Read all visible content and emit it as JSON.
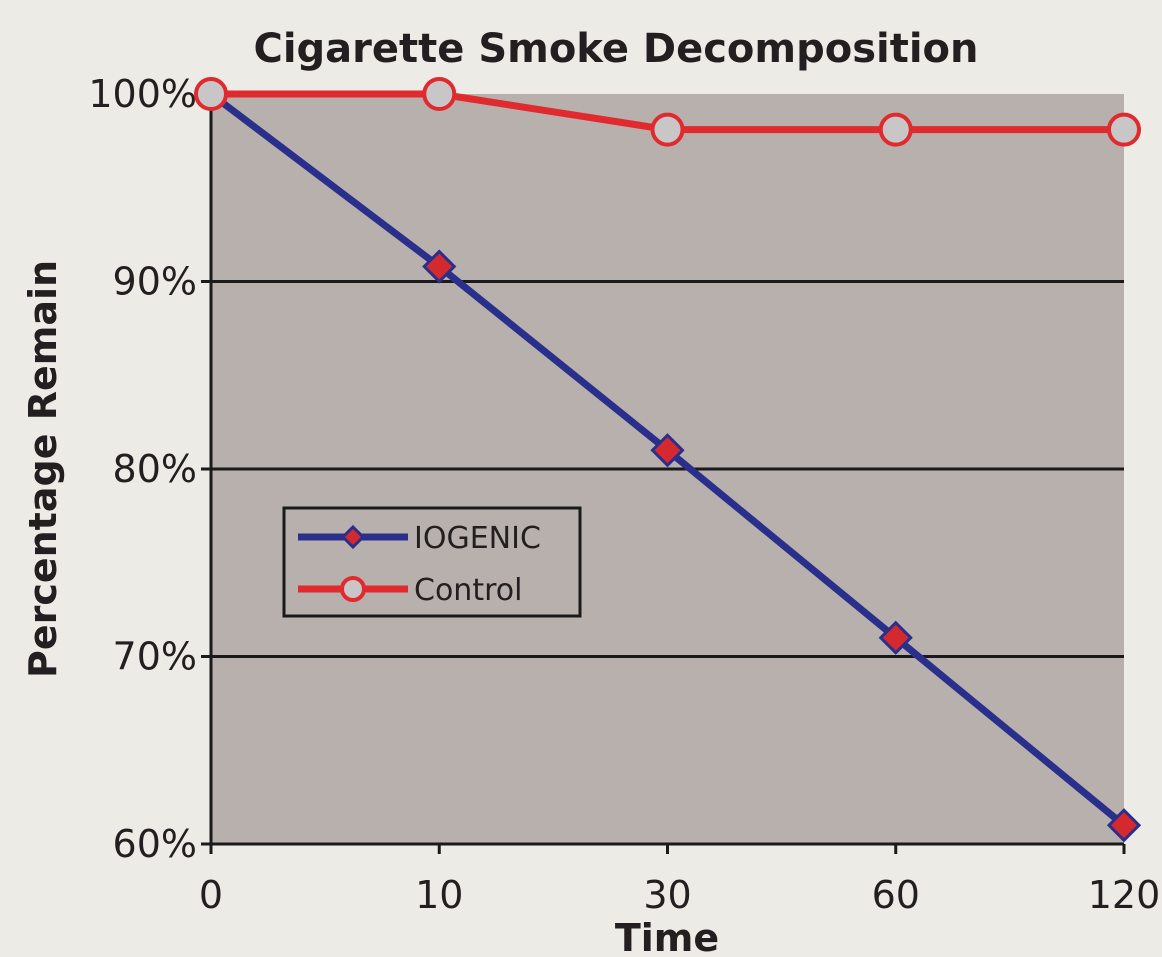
{
  "chart_data": {
    "type": "line",
    "title": "Cigarette Smoke Decomposition",
    "xlabel": "Time",
    "ylabel": "Percentage Remain",
    "x": [
      "0",
      "10",
      "30",
      "60",
      "120"
    ],
    "y_ticks": [
      "60%",
      "70%",
      "80%",
      "90%",
      "100%"
    ],
    "ylim": [
      60,
      100
    ],
    "grid": true,
    "legend_position": "center-left",
    "series": [
      {
        "name": "IOGENIC",
        "values": [
          100,
          90.8,
          81,
          71,
          61
        ],
        "color": "#2a2f8c",
        "marker_color": "#d42a2f",
        "marker": "diamond"
      },
      {
        "name": "Control",
        "values": [
          100,
          100,
          98.1,
          98.1,
          98.1
        ],
        "color": "#e02a2e",
        "marker_color": "#c9c6c8",
        "marker": "circle"
      }
    ],
    "colors": {
      "plot_background": "#b7b0ac",
      "gridline": "#1a1a1a"
    }
  }
}
